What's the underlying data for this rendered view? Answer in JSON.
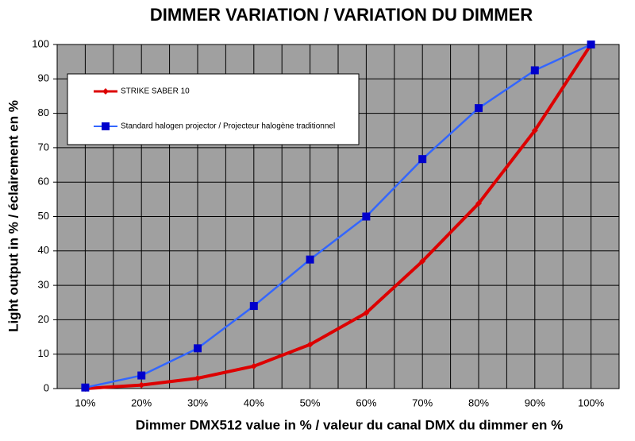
{
  "chart_data": {
    "type": "line",
    "title": "DIMMER VARIATION / VARIATION DU DIMMER",
    "x_label": "Dimmer DMX512 value in % / valeur du canal DMX du dimmer en %",
    "y_label": "Light output in % / éclairement en %",
    "categories": [
      "10%",
      "20%",
      "30%",
      "40%",
      "50%",
      "60%",
      "70%",
      "80%",
      "90%",
      "100%"
    ],
    "series": [
      {
        "name": "STRIKE SABER 10",
        "color": "#dd0000",
        "marker": "diamond",
        "values": [
          0,
          1,
          3,
          6.5,
          12.8,
          22,
          37,
          53.8,
          75,
          100
        ]
      },
      {
        "name": "Standard halogen projector / Projecteur halogène traditionnel",
        "color": "#3366ff",
        "marker": "square",
        "values": [
          0.3,
          3.8,
          11.7,
          24,
          37.5,
          50,
          66.7,
          81.5,
          92.5,
          100
        ]
      }
    ],
    "ylim": [
      0,
      100
    ],
    "yticks": [
      0,
      10,
      20,
      30,
      40,
      50,
      60,
      70,
      80,
      90,
      100
    ],
    "grid": true
  }
}
